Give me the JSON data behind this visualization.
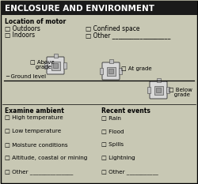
{
  "title": "ENCLOSURE AND ENVIRONMENT",
  "background_color": "#c8c8b4",
  "title_bg_color": "#1a1a1a",
  "title_text_color": "#ffffff",
  "border_color": "#000000",
  "text_color": "#000000",
  "title_fontsize": 7.5,
  "body_fontsize": 5.5,
  "bold_labels": [
    "Location of motor",
    "Examine ambient",
    "Recent events"
  ],
  "location_col1": [
    "□ Outdoors",
    "□ Indoors"
  ],
  "location_col2": [
    "□ Confined space",
    "□ Other ___________________"
  ],
  "grade_above": "□ Above\n   grade",
  "grade_at": "□ At grade",
  "grade_below": "□ Below\n   grade",
  "ground_label": "─ Ground level",
  "examine_items": [
    "□ High temperature",
    "□ Low temperature",
    "□ Moisture conditions",
    "□ Altitude, coastal or mining",
    "□ Other _______________"
  ],
  "recent_items": [
    "□ Rain",
    "□ Flood",
    "□ Spills",
    "□ Lightning",
    "□ Other ___________"
  ]
}
